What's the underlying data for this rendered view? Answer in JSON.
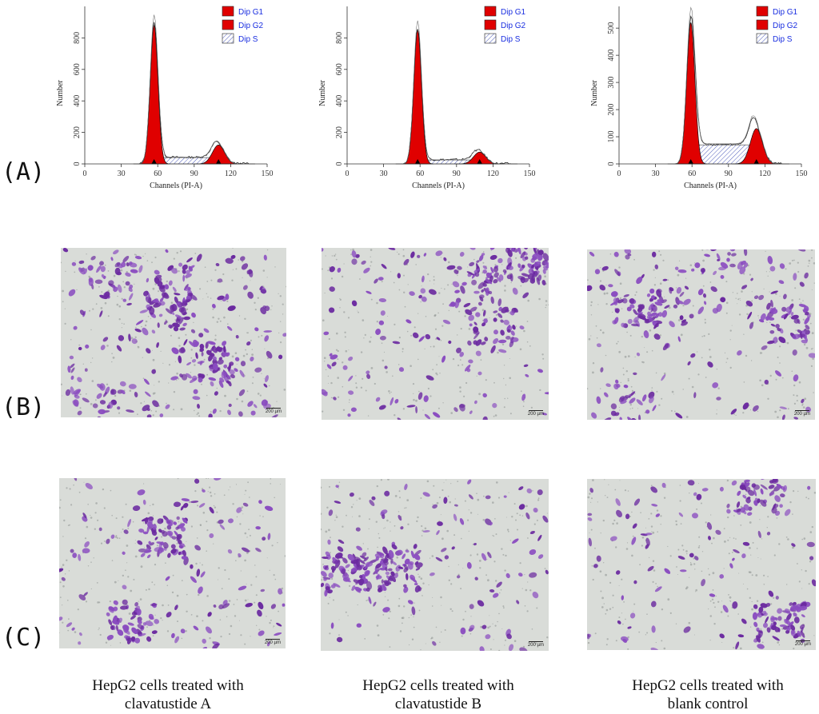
{
  "panel_labels": [
    "(A)",
    "(B)",
    "(C)"
  ],
  "scale_bar_label": "200 µm",
  "captions": [
    {
      "line1": "HepG2 cells treated with",
      "line2": "clavatustide A"
    },
    {
      "line1": "HepG2 cells treated with",
      "line2": "clavatustide B"
    },
    {
      "line1": "HepG2 cells treated with",
      "line2": "blank control"
    }
  ],
  "colors": {
    "g1_fill": "#e00000",
    "g2_fill": "#e00000",
    "s_hatch": "#2233aa",
    "legend_text": "#1a2ee0",
    "stain": "#6b2aa0",
    "background": "#d9dcd8"
  },
  "chart_data": [
    {
      "type": "area",
      "title": "",
      "xlabel": "Channels (PI-A)",
      "ylabel": "Number",
      "xlim": [
        0,
        150
      ],
      "ylim": [
        0,
        1000
      ],
      "xticks": [
        "0",
        "30",
        "60",
        "90",
        "120",
        "150"
      ],
      "yticks": [
        "0",
        "200",
        "400",
        "600",
        "800"
      ],
      "legend": [
        "Dip G1",
        "Dip G2",
        "Dip S"
      ],
      "series": [
        {
          "name": "Dip G1",
          "peak_channel": 57,
          "peak_height": 880,
          "width": 3.2
        },
        {
          "name": "Dip G2",
          "peak_channel": 110,
          "peak_height": 120,
          "width": 5
        },
        {
          "name": "Dip S",
          "level": 40,
          "from": 57,
          "to": 110
        }
      ]
    },
    {
      "type": "area",
      "title": "",
      "xlabel": "Channels (PI-A)",
      "ylabel": "Number",
      "xlim": [
        0,
        150
      ],
      "ylim": [
        0,
        1000
      ],
      "xticks": [
        "0",
        "30",
        "60",
        "90",
        "120",
        "150"
      ],
      "yticks": [
        "0",
        "200",
        "400",
        "600",
        "800"
      ],
      "legend": [
        "Dip G1",
        "Dip G2",
        "Dip S"
      ],
      "series": [
        {
          "name": "Dip G1",
          "peak_channel": 58,
          "peak_height": 850,
          "width": 3.2
        },
        {
          "name": "Dip G2",
          "peak_channel": 109,
          "peak_height": 75,
          "width": 5
        },
        {
          "name": "Dip S",
          "level": 25,
          "from": 58,
          "to": 109
        }
      ]
    },
    {
      "type": "area",
      "title": "",
      "xlabel": "Channels (PI-A)",
      "ylabel": "Number",
      "xlim": [
        0,
        150
      ],
      "ylim": [
        0,
        580
      ],
      "xticks": [
        "0",
        "30",
        "60",
        "90",
        "120",
        "150"
      ],
      "yticks": [
        "0",
        "100",
        "200",
        "300",
        "400",
        "500"
      ],
      "legend": [
        "Dip G1",
        "Dip G2",
        "Dip S"
      ],
      "series": [
        {
          "name": "Dip G1",
          "peak_channel": 59,
          "peak_height": 520,
          "width": 3.4
        },
        {
          "name": "Dip G2",
          "peak_channel": 113,
          "peak_height": 130,
          "width": 5
        },
        {
          "name": "Dip S",
          "level": 70,
          "from": 59,
          "to": 113
        }
      ]
    }
  ]
}
